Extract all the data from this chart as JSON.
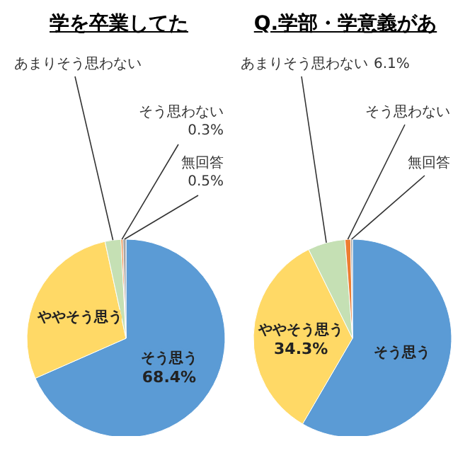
{
  "chart_data": [
    {
      "type": "pie",
      "title": "学を卒業してた",
      "categories": [
        "そう思う",
        "ややそう思う",
        "あまりそう思わない",
        "そう思わない",
        "無回答"
      ],
      "values": [
        68.4,
        28.2,
        2.6,
        0.3,
        0.5
      ],
      "colors": [
        "#5b9bd5",
        "#ffd966",
        "#c5e0b4",
        "#ed7d31",
        "#a5a5a5"
      ],
      "value_labels": [
        "68.4%",
        null,
        null,
        "0.3%",
        "0.5%"
      ]
    },
    {
      "type": "pie",
      "title": "Q.学部・学意義があ",
      "categories": [
        "そう思う",
        "ややそう思う",
        "あまりそう思わない",
        "そう思わない",
        "無回答"
      ],
      "values": [
        58.4,
        34.3,
        6.1,
        0.9,
        0.3
      ],
      "colors": [
        "#5b9bd5",
        "#ffd966",
        "#c5e0b4",
        "#ed7d31",
        "#a5a5a5"
      ],
      "value_labels": [
        null,
        "34.3%",
        "6.1%",
        null,
        null
      ]
    }
  ]
}
